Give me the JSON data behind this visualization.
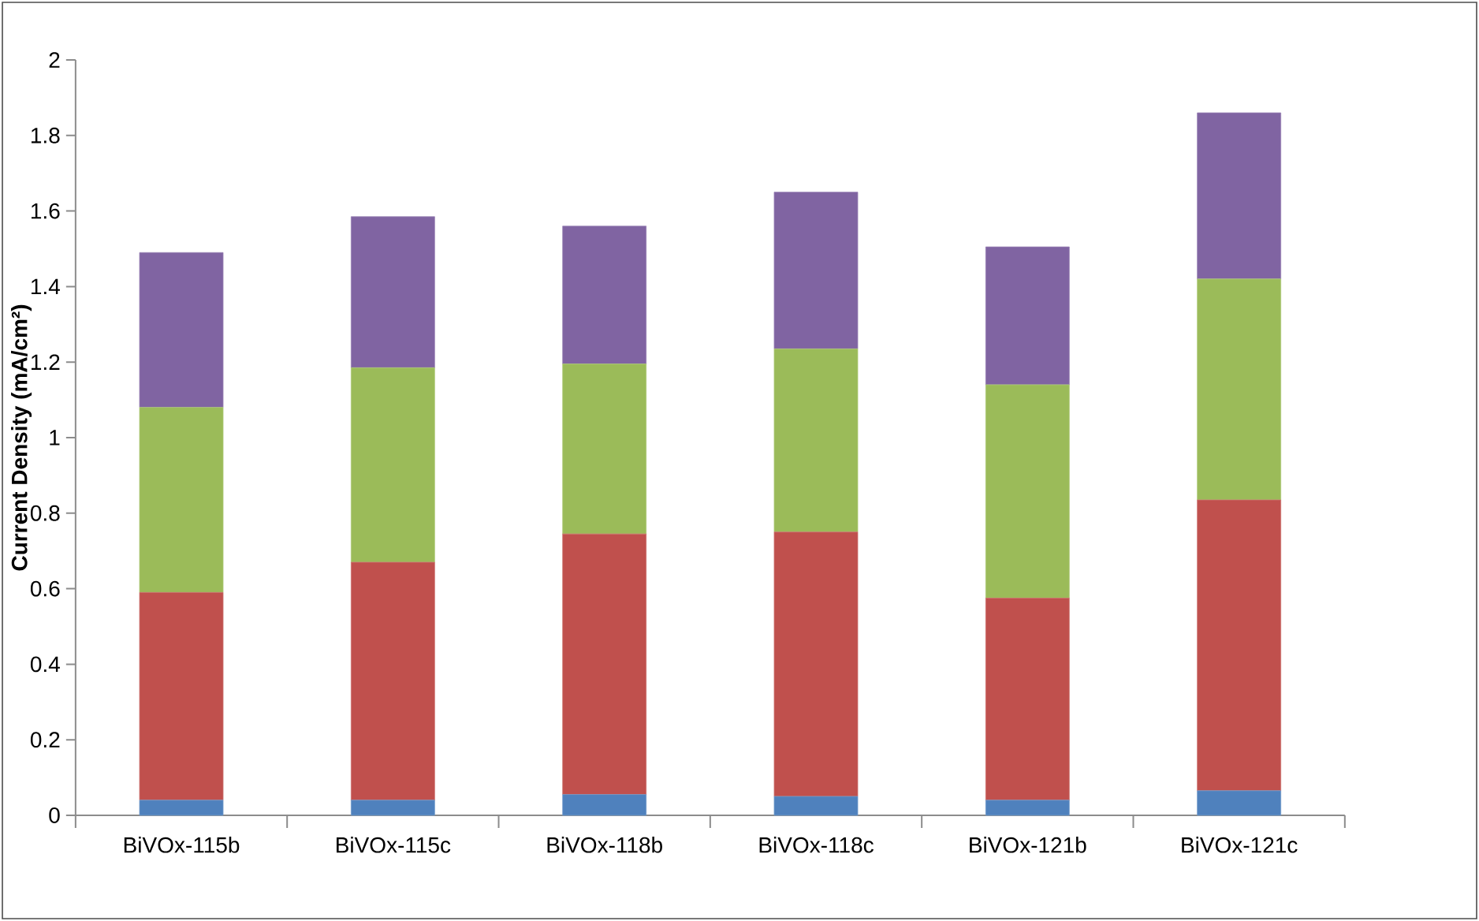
{
  "chart_data": {
    "type": "bar",
    "stacked": true,
    "ylabel": "Current Density (mA/cm²)",
    "categories": [
      "BiVOx-115b",
      "BiVOx-115c",
      "BiVOx-118b",
      "BiVOx-118c",
      "BiVOx-121b",
      "BiVOx-121c"
    ],
    "series": [
      {
        "color": "#4f81bd",
        "values": [
          0.04,
          0.04,
          0.055,
          0.05,
          0.04,
          0.065
        ]
      },
      {
        "color": "#c0504d",
        "values": [
          0.55,
          0.63,
          0.69,
          0.7,
          0.535,
          0.77
        ]
      },
      {
        "color": "#9bbb59",
        "values": [
          0.49,
          0.515,
          0.45,
          0.485,
          0.565,
          0.585
        ]
      },
      {
        "color": "#8064a2",
        "values": [
          0.41,
          0.4,
          0.365,
          0.415,
          0.365,
          0.44
        ]
      }
    ],
    "ylim": [
      0,
      2
    ],
    "yticks": [
      0,
      0.2,
      0.4,
      0.6,
      0.8,
      1,
      1.2,
      1.4,
      1.6,
      1.8,
      2
    ]
  }
}
